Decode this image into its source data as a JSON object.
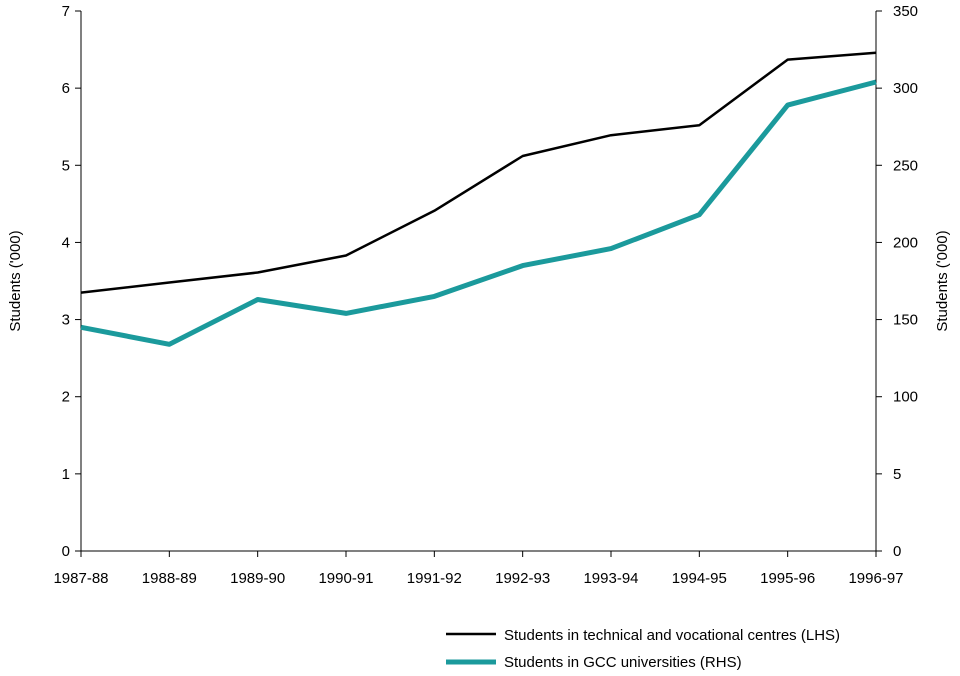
{
  "chart_data": {
    "type": "line",
    "categories": [
      "1987-88",
      "1988-89",
      "1989-90",
      "1990-91",
      "1991-92",
      "1992-93",
      "1993-94",
      "1994-95",
      "1995-96",
      "1996-97"
    ],
    "series": [
      {
        "name": "Students in technical and vocational centres (LHS)",
        "axis": "left",
        "color": "#000000",
        "values": [
          3.35,
          3.48,
          3.61,
          3.83,
          4.41,
          5.12,
          5.39,
          5.52,
          6.37,
          6.46
        ]
      },
      {
        "name": "Students in GCC universities (RHS)",
        "axis": "right",
        "color": "#1b9a9c",
        "values": [
          145,
          134,
          163,
          154,
          165,
          185,
          196,
          218,
          289,
          304
        ]
      }
    ],
    "ylabel_left": "Students ('000)",
    "ylabel_right": "Students ('000)",
    "ylim_left": [
      0,
      7
    ],
    "ylim_right": [
      0,
      350
    ],
    "yticks_left": [
      "0",
      "1",
      "2",
      "3",
      "4",
      "5",
      "6",
      "7"
    ],
    "yticks_right": [
      "0",
      "5",
      "100",
      "150",
      "200",
      "250",
      "300",
      "350"
    ],
    "grid": false,
    "legend_position": "bottom-right"
  }
}
